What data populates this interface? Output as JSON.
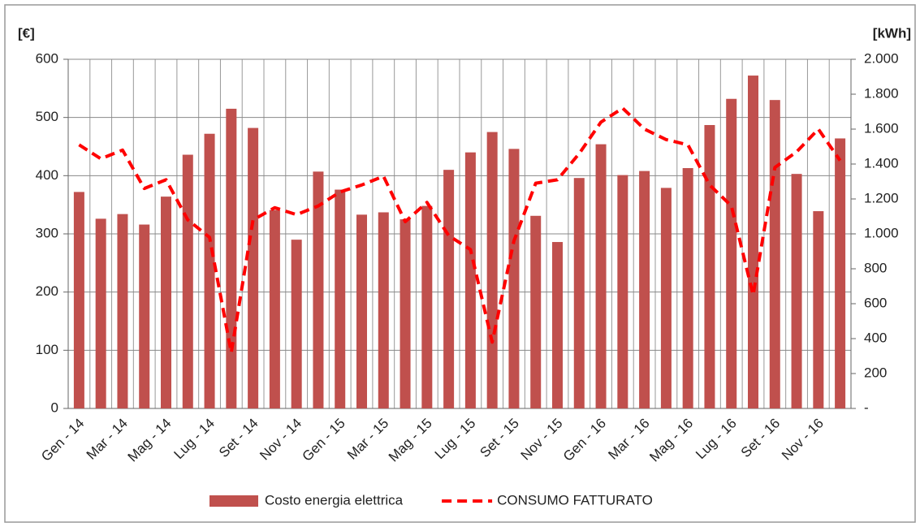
{
  "chart_data": {
    "type": "bar_line",
    "ylabel": "[€]",
    "y2label": "[kWh]",
    "categories": [
      "Gen - 14",
      null,
      "Mar - 14",
      null,
      "Mag - 14",
      null,
      "Lug - 14",
      null,
      "Set - 14",
      null,
      "Nov - 14",
      null,
      "Gen - 15",
      null,
      "Mar - 15",
      null,
      "Mag - 15",
      null,
      "Lug - 15",
      null,
      "Set - 15",
      null,
      "Nov - 15",
      null,
      "Gen - 16",
      null,
      "Mar - 16",
      null,
      "Mag - 16",
      null,
      "Lug - 16",
      null,
      "Set - 16",
      null,
      "Nov - 16",
      null
    ],
    "series": [
      {
        "name": "Costo energia elettrica",
        "color": "#c0504d",
        "kind": "bar",
        "values": [
          372,
          326,
          334,
          316,
          364,
          436,
          472,
          515,
          482,
          341,
          290,
          407,
          376,
          333,
          337,
          325,
          348,
          410,
          440,
          475,
          446,
          331,
          286,
          396,
          454,
          401,
          408,
          379,
          413,
          487,
          532,
          572,
          530,
          403,
          339,
          464
        ]
      },
      {
        "name": "CONSUMO FATTURATO",
        "color": "#ff0000",
        "kind": "line",
        "axis": "y2",
        "values": [
          1510,
          1430,
          1480,
          1260,
          1310,
          1080,
          980,
          320,
          1080,
          1150,
          1110,
          1160,
          1240,
          1280,
          1330,
          1070,
          1180,
          990,
          910,
          380,
          960,
          1290,
          1310,
          1460,
          1640,
          1720,
          1600,
          1540,
          1510,
          1280,
          1160,
          650,
          1380,
          1470,
          1600,
          1420
        ]
      }
    ],
    "ylim": [
      0,
      600
    ],
    "yticks": [
      0,
      100,
      200,
      300,
      400,
      500,
      600
    ],
    "y2lim": [
      0,
      2000
    ],
    "y2ticks": [
      {
        "value": 0,
        "label": "-"
      },
      200,
      400,
      600,
      800,
      {
        "value": 1000,
        "label": "1.000"
      },
      {
        "value": 1200,
        "label": "1.200"
      },
      {
        "value": 1400,
        "label": "1.400"
      },
      {
        "value": 1600,
        "label": "1.600"
      },
      {
        "value": 1800,
        "label": "1.800"
      },
      {
        "value": 2000,
        "label": "2.000"
      }
    ],
    "grid": true,
    "legend": "bottom"
  }
}
